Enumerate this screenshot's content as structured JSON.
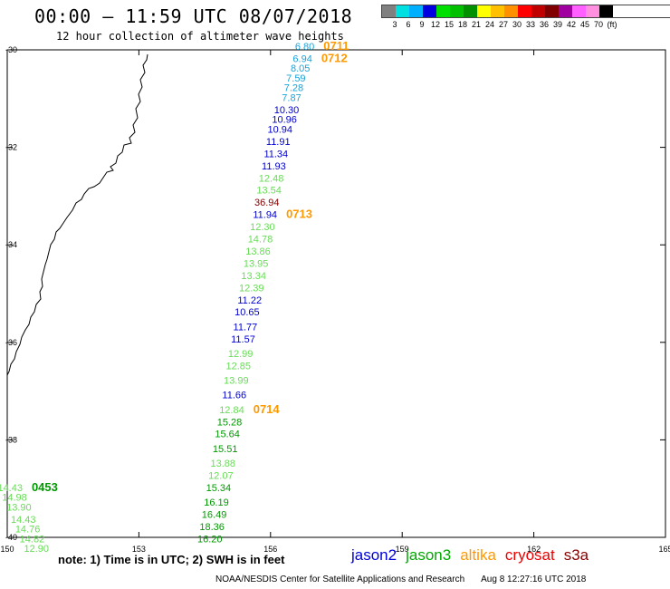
{
  "header": {
    "title": "00:00 – 11:59 UTC 08/07/2018",
    "subtitle": "12 hour collection of altimeter wave heights"
  },
  "color_scale": {
    "colors": [
      "#808080",
      "#00e0e0",
      "#00b0ff",
      "#0000e0",
      "#00e000",
      "#00c000",
      "#009000",
      "#ffff00",
      "#ffc000",
      "#ff9000",
      "#ff0000",
      "#c00000",
      "#800000",
      "#a000a0",
      "#ff60ff",
      "#ff90e0",
      "#000000"
    ],
    "ticks": [
      "3",
      "6",
      "9",
      "12",
      "15",
      "18",
      "21",
      "24",
      "27",
      "30",
      "33",
      "36",
      "39",
      "42",
      "45",
      "70",
      "(ft)"
    ]
  },
  "axes": {
    "lon_ticks": [
      "150",
      "153",
      "156",
      "159",
      "162",
      "165"
    ],
    "lat_ticks": [
      "-30",
      "-32",
      "-34",
      "-36",
      "-38",
      "-40"
    ]
  },
  "observations": [
    {
      "lon": 157.0,
      "lat": -30.0,
      "value": "6.80",
      "color": "#1aa3d8",
      "time": "0711"
    },
    {
      "lon": 156.95,
      "lat": -30.25,
      "value": "6.94",
      "color": "#1aa3d8",
      "time": "0712"
    },
    {
      "lon": 156.9,
      "lat": -30.45,
      "value": "8.05",
      "color": "#1aa3d8"
    },
    {
      "lon": 156.8,
      "lat": -30.65,
      "value": "7.59",
      "color": "#1aa3d8"
    },
    {
      "lon": 156.75,
      "lat": -30.85,
      "value": "7.28",
      "color": "#1aa3d8"
    },
    {
      "lon": 156.7,
      "lat": -31.05,
      "value": "7.87",
      "color": "#1aa3d8"
    },
    {
      "lon": 156.65,
      "lat": -31.3,
      "value": "10.30",
      "color": "#0000cc"
    },
    {
      "lon": 156.6,
      "lat": -31.5,
      "value": "10.96",
      "color": "#0000cc"
    },
    {
      "lon": 156.5,
      "lat": -31.7,
      "value": "10.94",
      "color": "#0000cc"
    },
    {
      "lon": 156.45,
      "lat": -31.95,
      "value": "11.91",
      "color": "#0000cc"
    },
    {
      "lon": 156.4,
      "lat": -32.2,
      "value": "11.34",
      "color": "#0000cc"
    },
    {
      "lon": 156.35,
      "lat": -32.45,
      "value": "11.93",
      "color": "#0000cc"
    },
    {
      "lon": 156.3,
      "lat": -32.7,
      "value": "12.48",
      "color": "#66dd55"
    },
    {
      "lon": 156.25,
      "lat": -32.95,
      "value": "13.54",
      "color": "#66dd55"
    },
    {
      "lon": 156.2,
      "lat": -33.2,
      "value": "36.94",
      "color": "#880000"
    },
    {
      "lon": 156.15,
      "lat": -33.45,
      "value": "11.94",
      "color": "#0000cc",
      "time": "0713"
    },
    {
      "lon": 156.1,
      "lat": -33.7,
      "value": "12.30",
      "color": "#66dd55"
    },
    {
      "lon": 156.05,
      "lat": -33.95,
      "value": "14.78",
      "color": "#66dd55"
    },
    {
      "lon": 156.0,
      "lat": -34.2,
      "value": "13.86",
      "color": "#66dd55"
    },
    {
      "lon": 155.95,
      "lat": -34.45,
      "value": "13.95",
      "color": "#66dd55"
    },
    {
      "lon": 155.9,
      "lat": -34.7,
      "value": "13.34",
      "color": "#66dd55"
    },
    {
      "lon": 155.85,
      "lat": -34.95,
      "value": "12.39",
      "color": "#66dd55"
    },
    {
      "lon": 155.8,
      "lat": -35.2,
      "value": "11.22",
      "color": "#0000cc"
    },
    {
      "lon": 155.75,
      "lat": -35.45,
      "value": "10.65",
      "color": "#0000cc"
    },
    {
      "lon": 155.7,
      "lat": -35.75,
      "value": "11.77",
      "color": "#0000cc"
    },
    {
      "lon": 155.65,
      "lat": -36.0,
      "value": "11.57",
      "color": "#0000cc"
    },
    {
      "lon": 155.6,
      "lat": -36.3,
      "value": "12.99",
      "color": "#66dd55"
    },
    {
      "lon": 155.55,
      "lat": -36.55,
      "value": "12.85",
      "color": "#66dd55"
    },
    {
      "lon": 155.5,
      "lat": -36.85,
      "value": "13.99",
      "color": "#66dd55"
    },
    {
      "lon": 155.45,
      "lat": -37.15,
      "value": "11.66",
      "color": "#0000cc"
    },
    {
      "lon": 155.4,
      "lat": -37.45,
      "value": "12.84",
      "color": "#66dd55",
      "time": "0714"
    },
    {
      "lon": 155.35,
      "lat": -37.7,
      "value": "15.28",
      "color": "#009900"
    },
    {
      "lon": 155.3,
      "lat": -37.95,
      "value": "15.64",
      "color": "#009900"
    },
    {
      "lon": 155.25,
      "lat": -38.25,
      "value": "15.51",
      "color": "#009900"
    },
    {
      "lon": 155.2,
      "lat": -38.55,
      "value": "13.88",
      "color": "#66dd55"
    },
    {
      "lon": 155.15,
      "lat": -38.8,
      "value": "12.07",
      "color": "#66dd55"
    },
    {
      "lon": 155.1,
      "lat": -39.05,
      "value": "15.34",
      "color": "#009900"
    },
    {
      "lon": 155.05,
      "lat": -39.35,
      "value": "16.19",
      "color": "#009900"
    },
    {
      "lon": 155.0,
      "lat": -39.6,
      "value": "16.49",
      "color": "#009900"
    },
    {
      "lon": 154.95,
      "lat": -39.85,
      "value": "18.36",
      "color": "#009900"
    },
    {
      "lon": 154.9,
      "lat": -40.1,
      "value": "16.20",
      "color": "#009900"
    },
    {
      "lon": 150.35,
      "lat": -39.05,
      "value": "14.43",
      "color": "#66dd55",
      "time": "0453"
    },
    {
      "lon": 150.45,
      "lat": -39.25,
      "value": "14.98",
      "color": "#66dd55"
    },
    {
      "lon": 150.55,
      "lat": -39.45,
      "value": "13.90",
      "color": "#66dd55"
    },
    {
      "lon": 150.65,
      "lat": -39.7,
      "value": "14.43",
      "color": "#66dd55"
    },
    {
      "lon": 150.75,
      "lat": -39.9,
      "value": "14.76",
      "color": "#66dd55"
    },
    {
      "lon": 150.85,
      "lat": -40.1,
      "value": "14.82",
      "color": "#66dd55"
    },
    {
      "lon": 150.95,
      "lat": -40.3,
      "value": "12.90",
      "color": "#66dd55"
    }
  ],
  "time_label_colors": {
    "0711": "#ff9900",
    "0712": "#ff9900",
    "0713": "#ff9900",
    "0714": "#ff9900",
    "0453": "#009900"
  },
  "footer": {
    "note": "note: 1) Time is in UTC; 2) SWH is in feet",
    "legend": [
      {
        "name": "jason2",
        "color": "#0000dd"
      },
      {
        "name": "jason3",
        "color": "#00aa00"
      },
      {
        "name": "altika",
        "color": "#ff9900"
      },
      {
        "name": "cryosat",
        "color": "#ee0000"
      },
      {
        "name": "s3a",
        "color": "#880000"
      }
    ],
    "credit": "NOAA/NESDIS Center for Satellite Applications and Research",
    "timestamp": "Aug  8 12:27:16 UTC 2018"
  }
}
